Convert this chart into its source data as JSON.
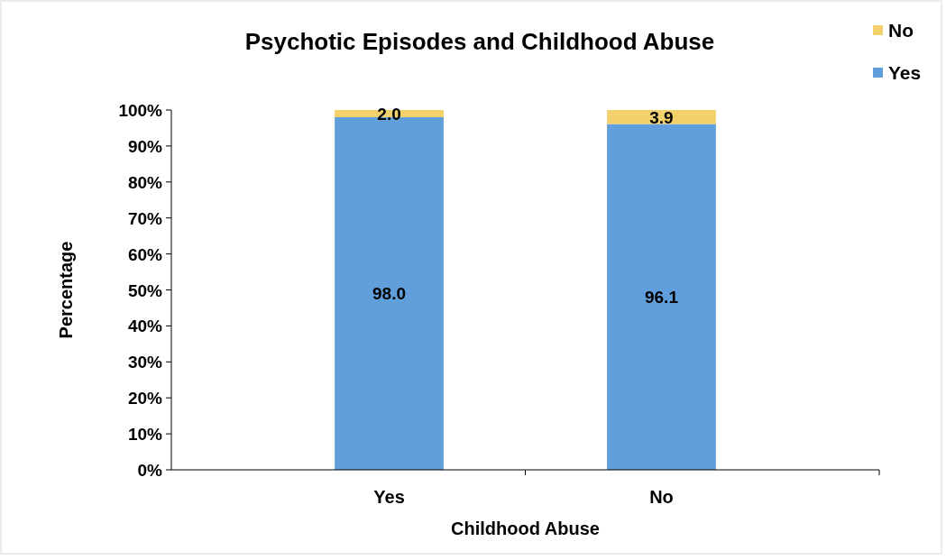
{
  "chart_data": {
    "type": "bar",
    "title": "Psychotic Episodes and Childhood Abuse",
    "xlabel": "Childhood Abuse",
    "ylabel": "Percentage",
    "categories": [
      "Yes",
      "No"
    ],
    "stacked": true,
    "series": [
      {
        "name": "Yes",
        "color": "#619fdc",
        "values": [
          98.0,
          96.1
        ],
        "value_labels": [
          "98.0",
          "96.1"
        ]
      },
      {
        "name": "No",
        "color": "#f2d06b",
        "values": [
          2.0,
          3.9
        ],
        "value_labels": [
          "2.0",
          "3.9"
        ]
      }
    ],
    "ylim": [
      0,
      100
    ],
    "yticks": [
      {
        "value": 0,
        "label": "0%"
      },
      {
        "value": 10,
        "label": "10%"
      },
      {
        "value": 20,
        "label": "20%"
      },
      {
        "value": 30,
        "label": "30%"
      },
      {
        "value": 40,
        "label": "40%"
      },
      {
        "value": 50,
        "label": "50%"
      },
      {
        "value": 60,
        "label": "60%"
      },
      {
        "value": 70,
        "label": "70%"
      },
      {
        "value": 80,
        "label": "80%"
      },
      {
        "value": 90,
        "label": "90%"
      },
      {
        "value": 100,
        "label": "100%"
      }
    ],
    "grid": false,
    "legend": "top right"
  }
}
